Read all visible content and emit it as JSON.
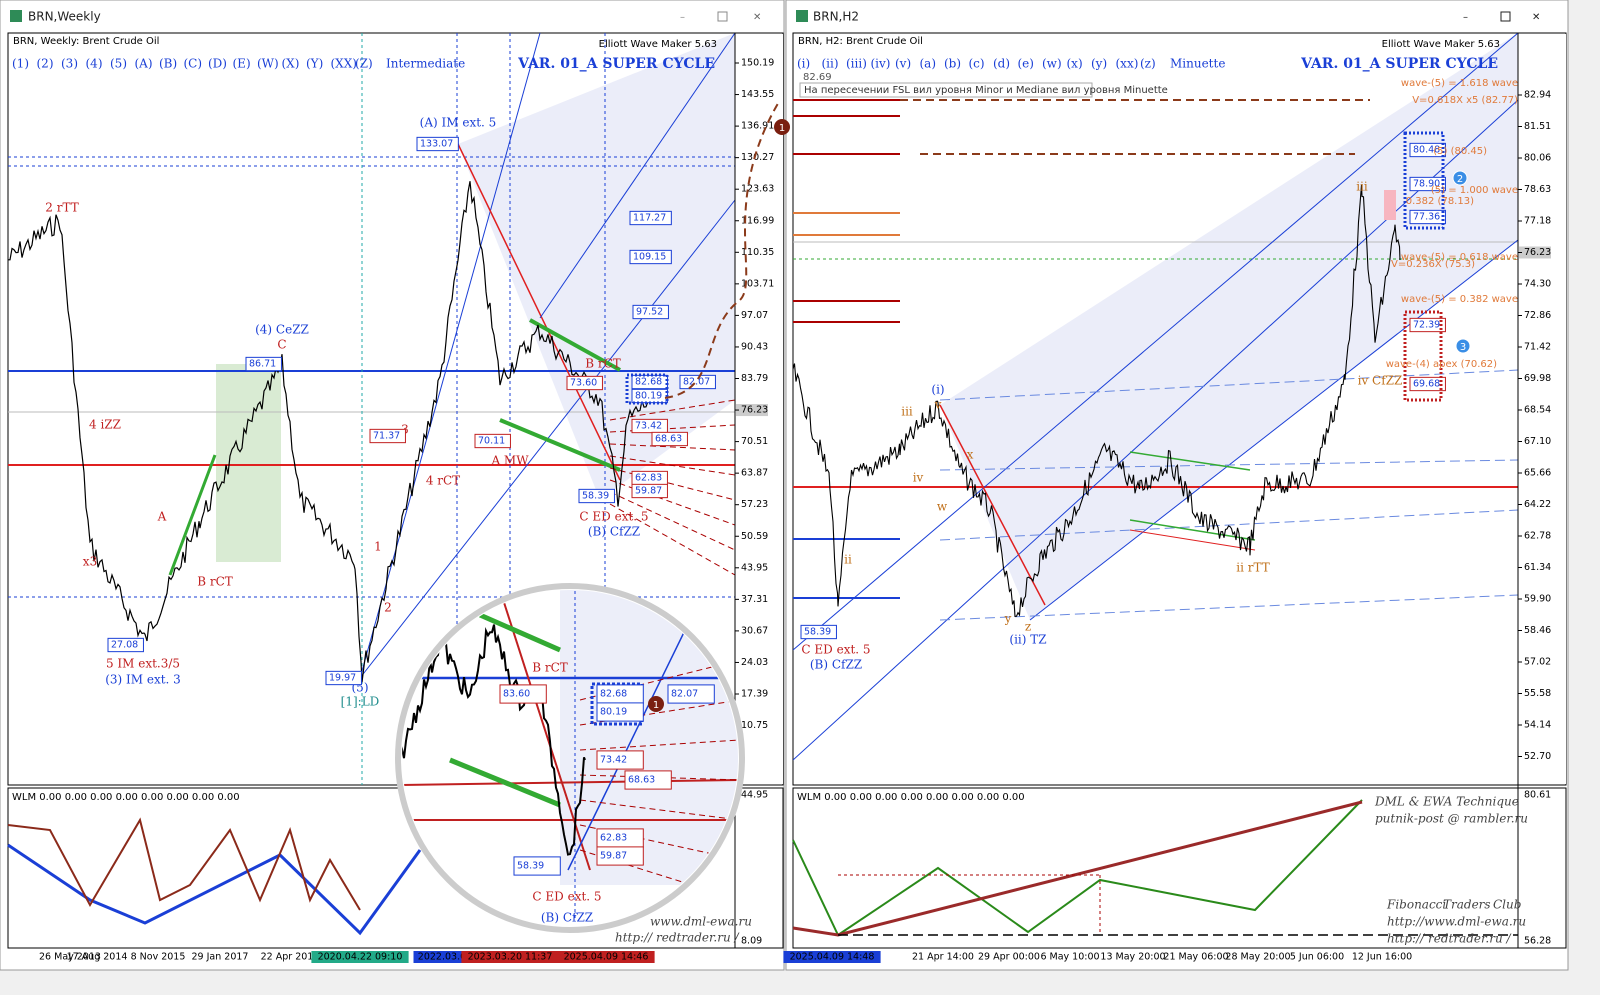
{
  "left": {
    "window_title": "BRN,Weekly",
    "header": "BRN, Weekly:  Brent Crude Oil",
    "wave_buttons": [
      "(1)",
      "(2)",
      "(3)",
      "(4)",
      "(5)",
      "(A)",
      "(B)",
      "(C)",
      "(D)",
      "(E)",
      "(W)",
      "(X)",
      "(Y)",
      "(XX)",
      "(Z)"
    ],
    "degree": "Intermediate",
    "variant": "VAR. 01_A SUPER CYCLE",
    "tool": "Elliott Wave Maker 5.63",
    "price_axis": [
      "150.19",
      "143.55",
      "136.91",
      "130.27",
      "123.63",
      "116.99",
      "110.35",
      "103.71",
      "97.07",
      "90.43",
      "83.79",
      "76.23",
      "70.51",
      "63.87",
      "57.23",
      "50.59",
      "43.95",
      "37.31",
      "30.67",
      "24.03",
      "17.39",
      "10.75"
    ],
    "indicator_axis": [
      "44.95",
      "8.09"
    ],
    "time_axis": [
      "26 May 2013",
      "17 Aug 2014",
      "8 Nov 2015",
      "29 Jan 2017",
      "22 Apr 2018",
      "2020.04.22 09:10",
      "2022.03.08",
      "2023.03.20 11:37",
      "2025.04.09 14:46"
    ],
    "indicator_label": "WLM 0.00 0.00 0.00 0.00 0.00 0.00 0.00 0.00",
    "wave_labels": [
      "2 rTT",
      "4 iZZ",
      "x3",
      "5 IM ext.3/5",
      "(3) IM ext. 3",
      "A",
      "B rCT",
      "(4) CeZZ",
      "C",
      "(A) IM ext. 5",
      "3",
      "4 rCT",
      "1",
      "2",
      "(5)",
      "[1]:LD",
      "A MW",
      "B rCT",
      "C ED ext. 5",
      "(B) CfZZ"
    ],
    "price_boxes": [
      "133.07",
      "86.71",
      "71.37",
      "70.11",
      "27.08",
      "19.97",
      "58.39",
      "117.27",
      "109.15",
      "97.52",
      "82.68",
      "80.19",
      "82.07",
      "73.60",
      "73.42",
      "68.63",
      "62.83",
      "59.87"
    ],
    "magnifier": {
      "labels": [
        "B rCT",
        "C ED ext. 5",
        "(B) CfZZ"
      ],
      "boxes": [
        "83.60",
        "82.68",
        "80.19",
        "82.07",
        "73.42",
        "68.63",
        "62.83",
        "59.87",
        "58.39"
      ],
      "site": "www.dml-ewa.ru",
      "site2": "http:// redtrader.ru /",
      "marker": "1"
    },
    "marker": "1"
  },
  "right": {
    "window_title": "BRN,H2",
    "header": "BRN, H2:  Brent Crude Oil",
    "wave_buttons": [
      "(i)",
      "(ii)",
      "(iii)",
      "(iv)",
      "(v)",
      "(a)",
      "(b)",
      "(c)",
      "(d)",
      "(e)",
      "(w)",
      "(x)",
      "(y)",
      "(xx)",
      "(z)"
    ],
    "degree": "Minuette",
    "variant": "VAR. 01_A SUPER CYCLE",
    "tool": "Elliott Wave Maker 5.63",
    "note_value": "82.69",
    "note": "На пересечении FSL вил уровня Minor и Mediane вил уровня Minuette",
    "price_axis": [
      "82.94",
      "81.51",
      "80.06",
      "78.63",
      "77.18",
      "76.23",
      "74.30",
      "72.86",
      "71.42",
      "69.98",
      "68.54",
      "67.10",
      "65.66",
      "64.22",
      "62.78",
      "61.34",
      "59.90",
      "58.46",
      "57.02",
      "55.58",
      "54.14",
      "52.70"
    ],
    "indicator_axis": [
      "80.61",
      "56.28"
    ],
    "time_axis": [
      "2025.04.09 14:48",
      "21 Apr 14:00",
      "29 Apr 00:00",
      "6 May 10:00",
      "13 May 20:00",
      "21 May 06:00",
      "28 May 20:00",
      "5 Jun 06:00",
      "12 Jun 16:00"
    ],
    "indicator_label": "WLM 0.00 0.00 0.00 0.00 0.00 0.00 0.00 0.00",
    "wave_labels": [
      "(i)",
      "ii",
      "iii",
      "iv",
      "v",
      "w",
      "x",
      "y",
      "z",
      "(ii) TZ",
      "C ED ext. 5",
      "(B) CfZZ",
      "ii rTT",
      "iii",
      "iv CfZZ"
    ],
    "price_boxes": [
      "58.39",
      "80.48",
      "78.90",
      "77.36",
      "72.39",
      "69.68"
    ],
    "fib_labels": [
      "wave-(5) = 1.618 wave",
      "V=0.618X x5 (82.77)",
      "(5) (80.45)",
      "(5) = 1.000 wave",
      "0.382 (78.13)",
      "wave-(5) = 0.618 wave",
      "V=0.236X (75.3)",
      "wave-(5) = 0.382 wave",
      "wave-(4) apex (70.62)"
    ],
    "markers": [
      "2",
      "3"
    ],
    "signature": [
      "DML & EWA Technique",
      "putnik-post @ rambler.ru",
      "Fibonacci",
      "Traders",
      "Club",
      "http://www.dml-ewa.ru",
      "http:// redtrader.ru /"
    ]
  }
}
